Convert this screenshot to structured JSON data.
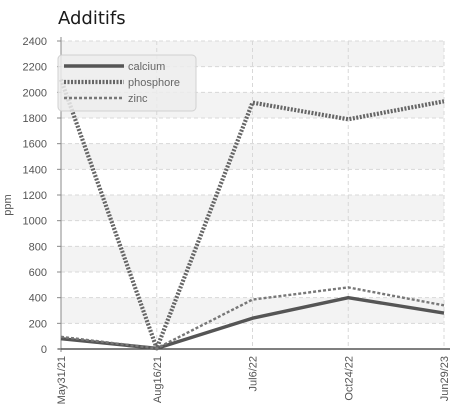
{
  "chart_data": {
    "type": "line",
    "title": "Additifs",
    "xlabel": "",
    "ylabel": "ppm",
    "categories": [
      "May31/21",
      "Aug16/21",
      "Jul6/22",
      "Oct24/22",
      "Jun29/23"
    ],
    "ylim": [
      0,
      2400
    ],
    "yticks": [
      0,
      200,
      400,
      600,
      800,
      1000,
      1200,
      1400,
      1600,
      1800,
      2000,
      2200,
      2400
    ],
    "grid": true,
    "legend_position": "top-left",
    "series": [
      {
        "name": "calcium",
        "values": [
          80,
          5,
          240,
          400,
          280
        ],
        "color": "#555555",
        "style": "solid"
      },
      {
        "name": "phosphore",
        "values": [
          2100,
          5,
          1920,
          1790,
          1930
        ],
        "color": "#666666",
        "style": "dotted"
      },
      {
        "name": "zinc",
        "values": [
          95,
          5,
          385,
          480,
          340
        ],
        "color": "#777777",
        "style": "dashed"
      }
    ]
  }
}
